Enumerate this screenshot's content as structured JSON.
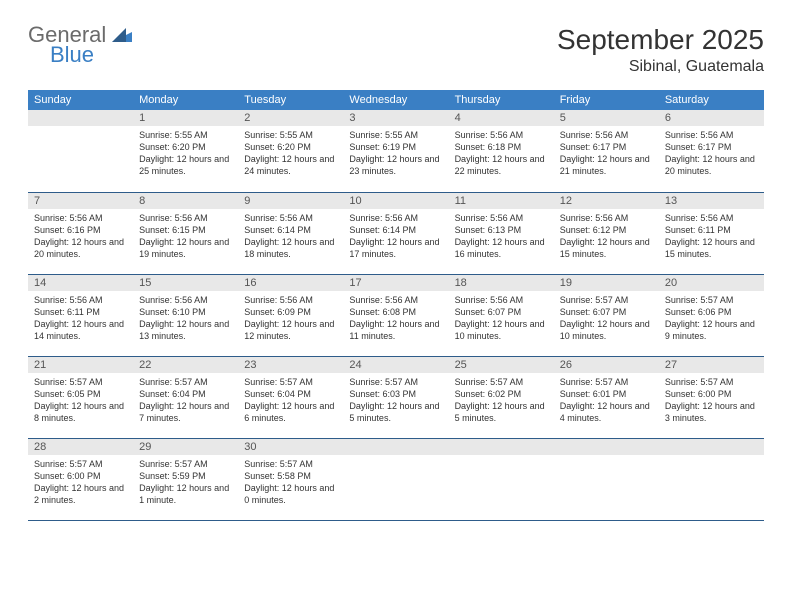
{
  "brand": {
    "name1": "General",
    "name2": "Blue"
  },
  "title": "September 2025",
  "location": "Sibinal, Guatemala",
  "colors": {
    "header_bg": "#3a7fc4",
    "header_text": "#ffffff",
    "daynum_bg": "#e8e8e8",
    "border": "#2e5c8a",
    "text": "#333333",
    "logo_gray": "#6b6b6b",
    "logo_blue": "#3a7fc4"
  },
  "typography": {
    "title_fontsize": 28,
    "location_fontsize": 16,
    "dayheader_fontsize": 11,
    "daynum_fontsize": 11,
    "body_fontsize": 9
  },
  "day_names": [
    "Sunday",
    "Monday",
    "Tuesday",
    "Wednesday",
    "Thursday",
    "Friday",
    "Saturday"
  ],
  "weeks": [
    [
      {
        "num": "",
        "sunrise": "",
        "sunset": "",
        "daylight": ""
      },
      {
        "num": "1",
        "sunrise": "Sunrise: 5:55 AM",
        "sunset": "Sunset: 6:20 PM",
        "daylight": "Daylight: 12 hours and 25 minutes."
      },
      {
        "num": "2",
        "sunrise": "Sunrise: 5:55 AM",
        "sunset": "Sunset: 6:20 PM",
        "daylight": "Daylight: 12 hours and 24 minutes."
      },
      {
        "num": "3",
        "sunrise": "Sunrise: 5:55 AM",
        "sunset": "Sunset: 6:19 PM",
        "daylight": "Daylight: 12 hours and 23 minutes."
      },
      {
        "num": "4",
        "sunrise": "Sunrise: 5:56 AM",
        "sunset": "Sunset: 6:18 PM",
        "daylight": "Daylight: 12 hours and 22 minutes."
      },
      {
        "num": "5",
        "sunrise": "Sunrise: 5:56 AM",
        "sunset": "Sunset: 6:17 PM",
        "daylight": "Daylight: 12 hours and 21 minutes."
      },
      {
        "num": "6",
        "sunrise": "Sunrise: 5:56 AM",
        "sunset": "Sunset: 6:17 PM",
        "daylight": "Daylight: 12 hours and 20 minutes."
      }
    ],
    [
      {
        "num": "7",
        "sunrise": "Sunrise: 5:56 AM",
        "sunset": "Sunset: 6:16 PM",
        "daylight": "Daylight: 12 hours and 20 minutes."
      },
      {
        "num": "8",
        "sunrise": "Sunrise: 5:56 AM",
        "sunset": "Sunset: 6:15 PM",
        "daylight": "Daylight: 12 hours and 19 minutes."
      },
      {
        "num": "9",
        "sunrise": "Sunrise: 5:56 AM",
        "sunset": "Sunset: 6:14 PM",
        "daylight": "Daylight: 12 hours and 18 minutes."
      },
      {
        "num": "10",
        "sunrise": "Sunrise: 5:56 AM",
        "sunset": "Sunset: 6:14 PM",
        "daylight": "Daylight: 12 hours and 17 minutes."
      },
      {
        "num": "11",
        "sunrise": "Sunrise: 5:56 AM",
        "sunset": "Sunset: 6:13 PM",
        "daylight": "Daylight: 12 hours and 16 minutes."
      },
      {
        "num": "12",
        "sunrise": "Sunrise: 5:56 AM",
        "sunset": "Sunset: 6:12 PM",
        "daylight": "Daylight: 12 hours and 15 minutes."
      },
      {
        "num": "13",
        "sunrise": "Sunrise: 5:56 AM",
        "sunset": "Sunset: 6:11 PM",
        "daylight": "Daylight: 12 hours and 15 minutes."
      }
    ],
    [
      {
        "num": "14",
        "sunrise": "Sunrise: 5:56 AM",
        "sunset": "Sunset: 6:11 PM",
        "daylight": "Daylight: 12 hours and 14 minutes."
      },
      {
        "num": "15",
        "sunrise": "Sunrise: 5:56 AM",
        "sunset": "Sunset: 6:10 PM",
        "daylight": "Daylight: 12 hours and 13 minutes."
      },
      {
        "num": "16",
        "sunrise": "Sunrise: 5:56 AM",
        "sunset": "Sunset: 6:09 PM",
        "daylight": "Daylight: 12 hours and 12 minutes."
      },
      {
        "num": "17",
        "sunrise": "Sunrise: 5:56 AM",
        "sunset": "Sunset: 6:08 PM",
        "daylight": "Daylight: 12 hours and 11 minutes."
      },
      {
        "num": "18",
        "sunrise": "Sunrise: 5:56 AM",
        "sunset": "Sunset: 6:07 PM",
        "daylight": "Daylight: 12 hours and 10 minutes."
      },
      {
        "num": "19",
        "sunrise": "Sunrise: 5:57 AM",
        "sunset": "Sunset: 6:07 PM",
        "daylight": "Daylight: 12 hours and 10 minutes."
      },
      {
        "num": "20",
        "sunrise": "Sunrise: 5:57 AM",
        "sunset": "Sunset: 6:06 PM",
        "daylight": "Daylight: 12 hours and 9 minutes."
      }
    ],
    [
      {
        "num": "21",
        "sunrise": "Sunrise: 5:57 AM",
        "sunset": "Sunset: 6:05 PM",
        "daylight": "Daylight: 12 hours and 8 minutes."
      },
      {
        "num": "22",
        "sunrise": "Sunrise: 5:57 AM",
        "sunset": "Sunset: 6:04 PM",
        "daylight": "Daylight: 12 hours and 7 minutes."
      },
      {
        "num": "23",
        "sunrise": "Sunrise: 5:57 AM",
        "sunset": "Sunset: 6:04 PM",
        "daylight": "Daylight: 12 hours and 6 minutes."
      },
      {
        "num": "24",
        "sunrise": "Sunrise: 5:57 AM",
        "sunset": "Sunset: 6:03 PM",
        "daylight": "Daylight: 12 hours and 5 minutes."
      },
      {
        "num": "25",
        "sunrise": "Sunrise: 5:57 AM",
        "sunset": "Sunset: 6:02 PM",
        "daylight": "Daylight: 12 hours and 5 minutes."
      },
      {
        "num": "26",
        "sunrise": "Sunrise: 5:57 AM",
        "sunset": "Sunset: 6:01 PM",
        "daylight": "Daylight: 12 hours and 4 minutes."
      },
      {
        "num": "27",
        "sunrise": "Sunrise: 5:57 AM",
        "sunset": "Sunset: 6:00 PM",
        "daylight": "Daylight: 12 hours and 3 minutes."
      }
    ],
    [
      {
        "num": "28",
        "sunrise": "Sunrise: 5:57 AM",
        "sunset": "Sunset: 6:00 PM",
        "daylight": "Daylight: 12 hours and 2 minutes."
      },
      {
        "num": "29",
        "sunrise": "Sunrise: 5:57 AM",
        "sunset": "Sunset: 5:59 PM",
        "daylight": "Daylight: 12 hours and 1 minute."
      },
      {
        "num": "30",
        "sunrise": "Sunrise: 5:57 AM",
        "sunset": "Sunset: 5:58 PM",
        "daylight": "Daylight: 12 hours and 0 minutes."
      },
      {
        "num": "",
        "sunrise": "",
        "sunset": "",
        "daylight": ""
      },
      {
        "num": "",
        "sunrise": "",
        "sunset": "",
        "daylight": ""
      },
      {
        "num": "",
        "sunrise": "",
        "sunset": "",
        "daylight": ""
      },
      {
        "num": "",
        "sunrise": "",
        "sunset": "",
        "daylight": ""
      }
    ]
  ]
}
